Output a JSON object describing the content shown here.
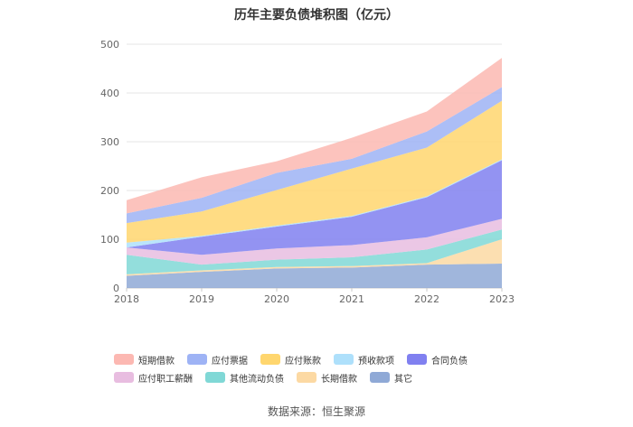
{
  "chart_data": {
    "type": "area",
    "stacked": true,
    "title": "历年主要负债堆积图（亿元）",
    "categories": [
      "2018",
      "2019",
      "2020",
      "2021",
      "2022",
      "2023"
    ],
    "ylim": [
      0,
      500
    ],
    "yticks": [
      0,
      100,
      200,
      300,
      400,
      500
    ],
    "grid": true,
    "legend_position": "bottom",
    "series": [
      {
        "name": "其它",
        "color": "#8fa9d6",
        "values": [
          25,
          33,
          40,
          42,
          48,
          50
        ]
      },
      {
        "name": "长期借款",
        "color": "#fcd9a3",
        "values": [
          3,
          3,
          3,
          3,
          3,
          50
        ]
      },
      {
        "name": "其他流动负债",
        "color": "#80d8d6",
        "values": [
          40,
          12,
          15,
          18,
          28,
          20
        ]
      },
      {
        "name": "应付职工薪酬",
        "color": "#e8bde0",
        "values": [
          15,
          20,
          23,
          25,
          25,
          22
        ]
      },
      {
        "name": "合同负债",
        "color": "#8080f0",
        "values": [
          0,
          37,
          45,
          58,
          82,
          120
        ]
      },
      {
        "name": "预收款项",
        "color": "#aee0fb",
        "values": [
          10,
          2,
          2,
          2,
          2,
          2
        ]
      },
      {
        "name": "应付账款",
        "color": "#ffd66e",
        "values": [
          40,
          50,
          73,
          97,
          100,
          120
        ]
      },
      {
        "name": "应付票据",
        "color": "#9eb3f5",
        "values": [
          20,
          28,
          35,
          20,
          33,
          28
        ]
      },
      {
        "name": "短期借款",
        "color": "#fcb8b2",
        "values": [
          27,
          42,
          24,
          43,
          41,
          60
        ]
      }
    ],
    "legend_order": [
      "短期借款",
      "应付票据",
      "应付账款",
      "预收款项",
      "合同负债",
      "应付职工薪酬",
      "其他流动负债",
      "长期借款",
      "其它"
    ]
  },
  "source_text": "数据来源：恒生聚源"
}
